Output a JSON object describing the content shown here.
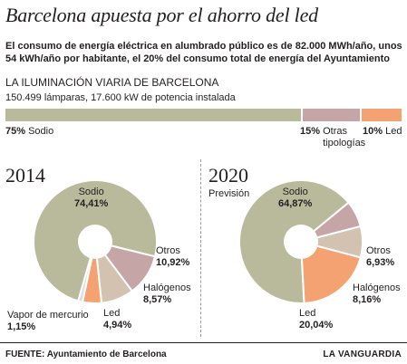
{
  "title": "Barcelona apuesta por el ahorro del led",
  "subtitle": "El consumo de energía eléctrica en alumbrado público es de 82.000 MWh/año, unos 54 kWh/año por habitante, el 20% del consumo total de energía del Ayuntamiento",
  "section": {
    "heading": "LA ILUMINACIÓN VIARIA DE BARCELONA",
    "detail": "150.499 lámparas, 17.600 kW de potencia instalada"
  },
  "colors": {
    "sodio": "#b9ba9b",
    "otros": "#c6a5a7",
    "led": "#f4a271",
    "halogenos": "#d3c2b0",
    "vapor": "#dcdcdc",
    "text": "#231f20"
  },
  "chart_data": [
    {
      "type": "bar",
      "stacked": true,
      "orientation": "horizontal",
      "categories": [
        "Sodio",
        "Otras tipologías",
        "Led"
      ],
      "values": [
        75,
        15,
        10
      ],
      "unit": "%",
      "labels": [
        {
          "value": "75%",
          "name": "Sodio"
        },
        {
          "value": "15%",
          "name": "Otras tipologías"
        },
        {
          "value": "10%",
          "name": "Led"
        }
      ]
    },
    {
      "type": "pie",
      "title": "2014",
      "subtitle": "",
      "donut": true,
      "unit": "%",
      "slices": [
        {
          "key": "sodio",
          "name": "Sodio",
          "value": 74.41,
          "label": "74,41%"
        },
        {
          "key": "otros",
          "name": "Otros",
          "value": 10.92,
          "label": "10,92%"
        },
        {
          "key": "halogenos",
          "name": "Halógenos",
          "value": 8.57,
          "label": "8,57%"
        },
        {
          "key": "led",
          "name": "Led",
          "value": 4.94,
          "label": "4,94%"
        },
        {
          "key": "vapor",
          "name": "Vapor de mercurio",
          "value": 1.15,
          "label": "1,15%"
        }
      ]
    },
    {
      "type": "pie",
      "title": "2020",
      "subtitle": "Previsión",
      "donut": true,
      "unit": "%",
      "slices": [
        {
          "key": "sodio",
          "name": "Sodio",
          "value": 64.87,
          "label": "64,87%"
        },
        {
          "key": "otros",
          "name": "Otros",
          "value": 6.93,
          "label": "6,93%"
        },
        {
          "key": "halogenos",
          "name": "Halógenos",
          "value": 8.16,
          "label": "8,16%"
        },
        {
          "key": "led",
          "name": "Led",
          "value": 20.04,
          "label": "20,04%"
        }
      ]
    }
  ],
  "footer": {
    "source": "FUENTE: Ayuntamiento de Barcelona",
    "credit": "LA VANGUARDIA"
  }
}
